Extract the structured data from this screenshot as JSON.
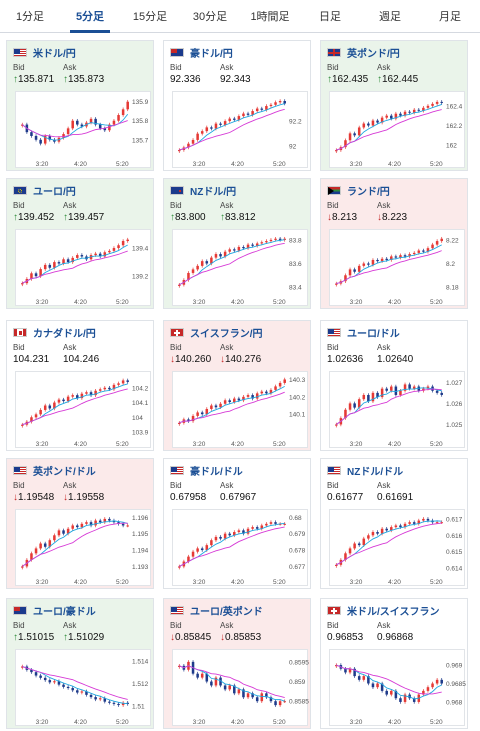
{
  "tabs": [
    {
      "label": "1分足",
      "active": false
    },
    {
      "label": "5分足",
      "active": true
    },
    {
      "label": "15分足",
      "active": false
    },
    {
      "label": "30分足",
      "active": false
    },
    {
      "label": "1時間足",
      "active": false
    },
    {
      "label": "日足",
      "active": false
    },
    {
      "label": "週足",
      "active": false
    },
    {
      "label": "月足",
      "active": false
    }
  ],
  "bid_label": "Bid",
  "ask_label": "Ask",
  "colors": {
    "up_card": "#eaf4ea",
    "down_card": "#fbeaea",
    "up_arrow": "#2e8b3a",
    "down_arrow": "#c62828",
    "candle_up": "#e53935",
    "candle_down": "#1e3a8a",
    "ma_fast": "#1ea7e0",
    "ma_slow": "#d63ad6"
  },
  "cards": [
    {
      "pair": "米ドル/円",
      "flag": "us-jp",
      "bid": "135.871",
      "ask": "135.873",
      "dir": "up",
      "chart_data": {
        "type": "candlestick",
        "x_ticks": [
          "3:20",
          "4:20",
          "5:20"
        ],
        "y_ticks": [
          "135.9",
          "135.8",
          "135.7"
        ],
        "y_range": [
          135.62,
          135.93
        ],
        "trend": [
          135.78,
          135.74,
          135.72,
          135.7,
          135.68,
          135.72,
          135.7,
          135.69,
          135.71,
          135.73,
          135.76,
          135.8,
          135.78,
          135.77,
          135.79,
          135.81,
          135.78,
          135.76,
          135.75,
          135.78,
          135.8,
          135.83,
          135.86,
          135.9
        ]
      }
    },
    {
      "pair": "豪ドル/円",
      "flag": "au",
      "bid": "92.336",
      "ask": "92.343",
      "dir": "flat",
      "chart_data": {
        "type": "candlestick",
        "x_ticks": [
          "3:20",
          "4:20",
          "5:20"
        ],
        "y_ticks": [
          "92.2",
          "92"
        ],
        "y_range": [
          91.93,
          92.4
        ],
        "trend": [
          91.97,
          91.99,
          92.02,
          92.05,
          92.1,
          92.12,
          92.15,
          92.14,
          92.18,
          92.17,
          92.2,
          92.22,
          92.21,
          92.24,
          92.26,
          92.25,
          92.28,
          92.3,
          92.29,
          92.32,
          92.33,
          92.35,
          92.36,
          92.34
        ]
      }
    },
    {
      "pair": "英ポンド/円",
      "flag": "gb",
      "bid": "162.435",
      "ask": "162.445",
      "dir": "up",
      "chart_data": {
        "type": "candlestick",
        "x_ticks": [
          "3:20",
          "4:20",
          "5:20"
        ],
        "y_ticks": [
          "162.4",
          "162.2",
          "162"
        ],
        "y_range": [
          161.9,
          162.5
        ],
        "trend": [
          161.95,
          161.98,
          162.05,
          162.12,
          162.1,
          162.18,
          162.22,
          162.2,
          162.25,
          162.23,
          162.28,
          162.3,
          162.27,
          162.32,
          162.3,
          162.34,
          162.33,
          162.36,
          162.35,
          162.38,
          162.4,
          162.42,
          162.44,
          162.43
        ]
      }
    },
    {
      "pair": "ユーロ/円",
      "flag": "eu",
      "bid": "139.452",
      "ask": "139.457",
      "dir": "up",
      "chart_data": {
        "type": "candlestick",
        "x_ticks": [
          "3:20",
          "4:20",
          "5:20"
        ],
        "y_ticks": [
          "139.4",
          "139.2"
        ],
        "y_range": [
          139.08,
          139.5
        ],
        "trend": [
          139.15,
          139.18,
          139.22,
          139.2,
          139.25,
          139.28,
          139.26,
          139.3,
          139.29,
          139.32,
          139.3,
          139.33,
          139.35,
          139.34,
          139.32,
          139.35,
          139.36,
          139.34,
          139.37,
          139.38,
          139.4,
          139.42,
          139.45,
          139.46
        ]
      }
    },
    {
      "pair": "NZドル/円",
      "flag": "nz",
      "bid": "83.800",
      "ask": "83.812",
      "dir": "up",
      "chart_data": {
        "type": "candlestick",
        "x_ticks": [
          "3:20",
          "4:20",
          "5:20"
        ],
        "y_ticks": [
          "83.8",
          "83.6",
          "83.4"
        ],
        "y_range": [
          83.35,
          83.85
        ],
        "trend": [
          83.42,
          83.46,
          83.52,
          83.55,
          83.58,
          83.62,
          83.6,
          83.65,
          83.68,
          83.66,
          83.7,
          83.72,
          83.71,
          83.74,
          83.73,
          83.76,
          83.75,
          83.77,
          83.78,
          83.79,
          83.8,
          83.81,
          83.8,
          83.81
        ]
      }
    },
    {
      "pair": "ランド/円",
      "flag": "za",
      "bid": "8.213",
      "ask": "8.223",
      "dir": "down",
      "chart_data": {
        "type": "candlestick",
        "x_ticks": [
          "3:20",
          "4:20",
          "5:20"
        ],
        "y_ticks": [
          "8.22",
          "8.2",
          "8.18"
        ],
        "y_range": [
          8.175,
          8.225
        ],
        "trend": [
          8.183,
          8.185,
          8.19,
          8.195,
          8.193,
          8.198,
          8.2,
          8.199,
          8.203,
          8.202,
          8.204,
          8.203,
          8.206,
          8.205,
          8.207,
          8.206,
          8.208,
          8.209,
          8.211,
          8.21,
          8.213,
          8.216,
          8.219,
          8.221
        ]
      }
    },
    {
      "pair": "カナダドル/円",
      "flag": "ca",
      "bid": "104.231",
      "ask": "104.246",
      "dir": "flat",
      "chart_data": {
        "type": "candlestick",
        "x_ticks": [
          "3:20",
          "4:20",
          "5:20"
        ],
        "y_ticks": [
          "104.2",
          "104.1",
          "104",
          "103.9"
        ],
        "y_range": [
          103.88,
          104.28
        ],
        "trend": [
          103.95,
          103.97,
          104.0,
          104.02,
          104.05,
          104.08,
          104.06,
          104.1,
          104.12,
          104.11,
          104.14,
          104.15,
          104.13,
          104.16,
          104.17,
          104.15,
          104.18,
          104.19,
          104.2,
          104.19,
          104.22,
          104.23,
          104.25,
          104.24
        ]
      }
    },
    {
      "pair": "スイスフラン/円",
      "flag": "ch",
      "bid": "140.260",
      "ask": "140.276",
      "dir": "down",
      "chart_data": {
        "type": "candlestick",
        "x_ticks": [
          "3:20",
          "4:20",
          "5:20"
        ],
        "y_ticks": [
          "140.3",
          "140.2",
          "140.1"
        ],
        "y_range": [
          139.98,
          140.32
        ],
        "trend": [
          140.05,
          140.07,
          140.06,
          140.09,
          140.11,
          140.1,
          140.13,
          140.15,
          140.14,
          140.16,
          140.18,
          140.17,
          140.19,
          140.18,
          140.2,
          140.21,
          140.19,
          140.22,
          140.23,
          140.22,
          140.24,
          140.26,
          140.28,
          140.3
        ]
      }
    },
    {
      "pair": "ユーロ/ドル",
      "flag": "eu-us",
      "bid": "1.02636",
      "ask": "1.02640",
      "dir": "flat",
      "chart_data": {
        "type": "candlestick",
        "x_ticks": [
          "3:20",
          "4:20",
          "5:20"
        ],
        "y_ticks": [
          "1.027",
          "1.026",
          "1.025"
        ],
        "y_range": [
          1.0245,
          1.0273
        ],
        "trend": [
          1.025,
          1.0253,
          1.0257,
          1.026,
          1.0258,
          1.0262,
          1.0264,
          1.0261,
          1.0265,
          1.0263,
          1.0267,
          1.0266,
          1.0268,
          1.0264,
          1.0266,
          1.0269,
          1.0267,
          1.0268,
          1.0266,
          1.0267,
          1.0268,
          1.0266,
          1.0265,
          1.0264
        ]
      }
    },
    {
      "pair": "英ポンド/ドル",
      "flag": "gb-us",
      "bid": "1.19548",
      "ask": "1.19558",
      "dir": "down",
      "chart_data": {
        "type": "candlestick",
        "x_ticks": [
          "3:20",
          "4:20",
          "5:20"
        ],
        "y_ticks": [
          "1.196",
          "1.195",
          "1.194",
          "1.193"
        ],
        "y_range": [
          1.1926,
          1.1962
        ],
        "trend": [
          1.193,
          1.1934,
          1.1938,
          1.1941,
          1.1944,
          1.1942,
          1.1946,
          1.1949,
          1.1952,
          1.195,
          1.1953,
          1.1955,
          1.1954,
          1.1956,
          1.1957,
          1.1955,
          1.1958,
          1.1957,
          1.1959,
          1.1958,
          1.1957,
          1.1956,
          1.1955,
          1.1955
        ]
      }
    },
    {
      "pair": "豪ドル/ドル",
      "flag": "au-us",
      "bid": "0.67958",
      "ask": "0.67967",
      "dir": "flat",
      "chart_data": {
        "type": "candlestick",
        "x_ticks": [
          "3:20",
          "4:20",
          "5:20"
        ],
        "y_ticks": [
          "0.68",
          "0.679",
          "0.678",
          "0.677"
        ],
        "y_range": [
          0.6766,
          0.6802
        ],
        "trend": [
          0.677,
          0.6773,
          0.6776,
          0.6779,
          0.6781,
          0.678,
          0.6783,
          0.6786,
          0.6788,
          0.6787,
          0.679,
          0.6789,
          0.6791,
          0.6792,
          0.679,
          0.6793,
          0.6794,
          0.6793,
          0.6795,
          0.6796,
          0.6797,
          0.6796,
          0.6796,
          0.6796
        ]
      }
    },
    {
      "pair": "NZドル/ドル",
      "flag": "nz-us",
      "bid": "0.61677",
      "ask": "0.61691",
      "dir": "flat",
      "chart_data": {
        "type": "candlestick",
        "x_ticks": [
          "3:20",
          "4:20",
          "5:20"
        ],
        "y_ticks": [
          "0.617",
          "0.616",
          "0.615",
          "0.614"
        ],
        "y_range": [
          0.6137,
          0.6173
        ],
        "trend": [
          0.6142,
          0.6145,
          0.6149,
          0.6152,
          0.6155,
          0.6154,
          0.6158,
          0.616,
          0.6162,
          0.6161,
          0.6164,
          0.6163,
          0.6165,
          0.6166,
          0.6165,
          0.6167,
          0.6168,
          0.6167,
          0.6169,
          0.617,
          0.6169,
          0.6168,
          0.6168,
          0.6168
        ]
      }
    },
    {
      "pair": "ユーロ/豪ドル",
      "flag": "eu-au",
      "bid": "1.51015",
      "ask": "1.51029",
      "dir": "up",
      "chart_data": {
        "type": "candlestick",
        "x_ticks": [
          "3:20",
          "4:20",
          "5:20"
        ],
        "y_ticks": [
          "1.514",
          "1.512",
          "1.51"
        ],
        "y_range": [
          1.5094,
          1.5146
        ],
        "trend": [
          1.5135,
          1.5132,
          1.513,
          1.5127,
          1.5125,
          1.5123,
          1.5121,
          1.5122,
          1.5119,
          1.5117,
          1.5116,
          1.5114,
          1.5112,
          1.5113,
          1.511,
          1.5108,
          1.5106,
          1.5107,
          1.5104,
          1.5103,
          1.5102,
          1.5101,
          1.5103,
          1.5102
        ]
      }
    },
    {
      "pair": "ユーロ/英ポンド",
      "flag": "eu-gb",
      "bid": "0.85845",
      "ask": "0.85853",
      "dir": "down",
      "chart_data": {
        "type": "candlestick",
        "x_ticks": [
          "3:20",
          "4:20",
          "5:20"
        ],
        "y_ticks": [
          "0.8595",
          "0.859",
          "0.8585"
        ],
        "y_range": [
          0.8582,
          0.8597
        ],
        "trend": [
          0.8594,
          0.8593,
          0.8595,
          0.8592,
          0.8591,
          0.8592,
          0.859,
          0.8589,
          0.8591,
          0.8589,
          0.8588,
          0.8589,
          0.8587,
          0.8588,
          0.8586,
          0.8587,
          0.8586,
          0.8585,
          0.8587,
          0.8586,
          0.8585,
          0.8584,
          0.8585,
          0.8585
        ]
      }
    },
    {
      "pair": "米ドル/スイスフラン",
      "flag": "us-ch",
      "bid": "0.96853",
      "ask": "0.96868",
      "dir": "flat",
      "chart_data": {
        "type": "candlestick",
        "x_ticks": [
          "3:20",
          "4:20",
          "5:20"
        ],
        "y_ticks": [
          "0.969",
          "0.9685",
          "0.968"
        ],
        "y_range": [
          0.9677,
          0.9693
        ],
        "trend": [
          0.969,
          0.9689,
          0.9688,
          0.9689,
          0.9687,
          0.9686,
          0.9687,
          0.9685,
          0.9684,
          0.9685,
          0.9683,
          0.9682,
          0.9683,
          0.9681,
          0.968,
          0.9682,
          0.9681,
          0.968,
          0.9682,
          0.9683,
          0.9684,
          0.9685,
          0.9686,
          0.9685
        ]
      }
    }
  ]
}
